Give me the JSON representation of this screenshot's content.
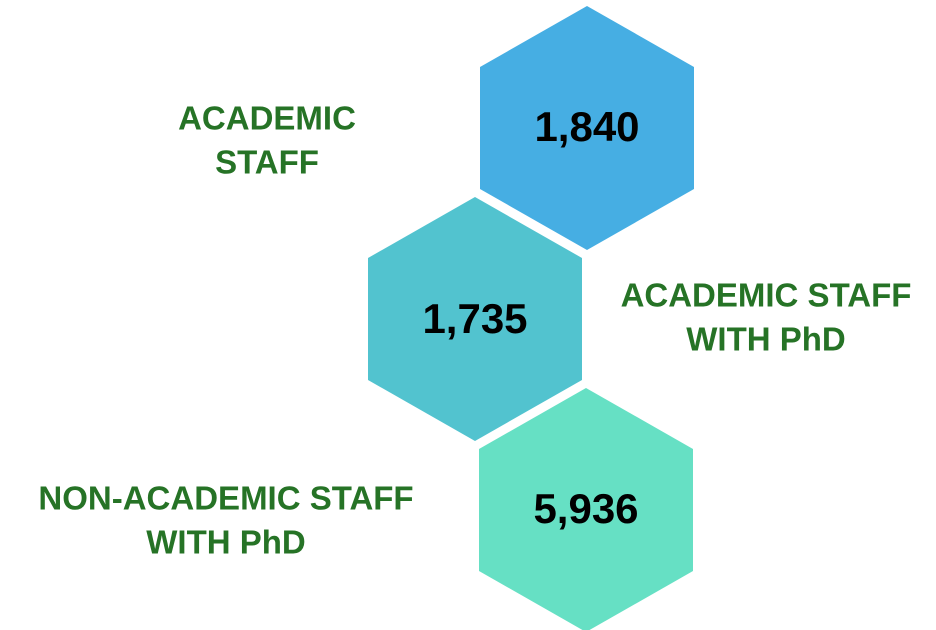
{
  "items": [
    {
      "label": [
        "ACADEMIC",
        "STAFF"
      ],
      "value": "1,840"
    },
    {
      "label": [
        "ACADEMIC STAFF",
        "WITH PhD"
      ],
      "value": "1,735"
    },
    {
      "label": [
        "NON-ACADEMIC STAFF",
        "WITH PhD"
      ],
      "value": "5,936"
    }
  ]
}
